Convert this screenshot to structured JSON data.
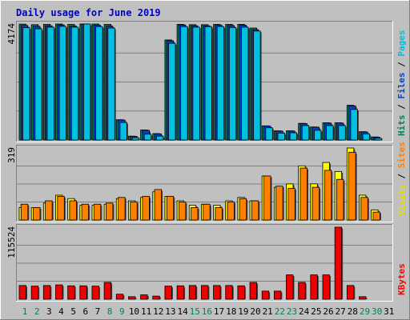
{
  "chart_data": {
    "type": "bar",
    "title": "Daily usage for June 2019",
    "days": [
      "1",
      "2",
      "3",
      "4",
      "5",
      "6",
      "7",
      "8",
      "9",
      "10",
      "11",
      "12",
      "13",
      "14",
      "15",
      "16",
      "17",
      "18",
      "19",
      "20",
      "21",
      "22",
      "23",
      "24",
      "25",
      "26",
      "27",
      "28",
      "29",
      "30",
      "31"
    ],
    "weekend_days": [
      "1",
      "2",
      "8",
      "9",
      "15",
      "16",
      "22",
      "23",
      "29",
      "30"
    ],
    "panels": [
      {
        "id": "hits",
        "max_label": "4174",
        "ymax": 4174,
        "vlabel": [
          {
            "text": "Hits",
            "color": "#00805c"
          },
          {
            "text": " / ",
            "color": "#000000"
          },
          {
            "text": "Files",
            "color": "#0044cc"
          },
          {
            "text": " / ",
            "color": "#000000"
          },
          {
            "text": "Pages",
            "color": "#00c0e0"
          }
        ],
        "series": [
          {
            "name": "Hits",
            "color": "#00805c",
            "values": [
              4170,
              4150,
              4160,
              4174,
              4160,
              4174,
              4174,
              4160,
              730,
              140,
              360,
              230,
              3600,
              4160,
              4150,
              4150,
              4160,
              4160,
              4160,
              4030,
              510,
              330,
              330,
              600,
              470,
              620,
              620,
              1250,
              300,
              110,
              0
            ]
          },
          {
            "name": "Files",
            "color": "#0044cc",
            "values": [
              4120,
              4090,
              4110,
              4140,
              4100,
              4174,
              4130,
              4100,
              720,
              130,
              350,
              220,
              3570,
              4140,
              4110,
              4110,
              4130,
              4120,
              4130,
              3970,
              500,
              320,
              320,
              590,
              460,
              610,
              610,
              1230,
              290,
              100,
              0
            ]
          },
          {
            "name": "Pages",
            "color": "#00c0e0",
            "values": [
              4040,
              4000,
              4060,
              4090,
              4060,
              4174,
              4080,
              4030,
              630,
              80,
              210,
              140,
              3480,
              4080,
              4060,
              4080,
              4080,
              4050,
              4060,
              3920,
              440,
              250,
              260,
              520,
              350,
              520,
              520,
              1100,
              220,
              60,
              0
            ]
          }
        ]
      },
      {
        "id": "visits",
        "max_label": "319",
        "ymax": 319,
        "vlabel": [
          {
            "text": "Visits",
            "color": "#e0e000"
          },
          {
            "text": " / ",
            "color": "#000000"
          },
          {
            "text": "Sites",
            "color": "#ff8000"
          }
        ],
        "series": [
          {
            "name": "Visits",
            "color": "#ffff00",
            "values": [
              55,
              55,
              75,
              110,
              95,
              65,
              65,
              70,
              95,
              85,
              100,
              125,
              105,
              85,
              65,
              70,
              65,
              85,
              100,
              85,
              195,
              145,
              160,
              240,
              160,
              255,
              215,
              319,
              110,
              45,
              0
            ]
          },
          {
            "name": "Sites",
            "color": "#ff8000",
            "values": [
              70,
              55,
              85,
              105,
              85,
              70,
              70,
              75,
              100,
              80,
              105,
              135,
              105,
              80,
              55,
              70,
              55,
              80,
              95,
              85,
              195,
              150,
              140,
              230,
              145,
              220,
              180,
              300,
              100,
              35,
              0
            ]
          }
        ]
      },
      {
        "id": "kbytes",
        "max_label": "115524",
        "ymax": 115524,
        "vlabel": [
          {
            "text": "KBytes",
            "color": "#ff0000"
          }
        ],
        "series": [
          {
            "name": "KBytes",
            "color": "#ee0000",
            "values": [
              22000,
              21000,
              22000,
              23000,
              21500,
              21500,
              21000,
              27000,
              8000,
              4000,
              7000,
              5000,
              21000,
              21500,
              22000,
              22000,
              22000,
              22000,
              21500,
              27000,
              13000,
              13000,
              39000,
              27000,
              39000,
              39000,
              115524,
              22000,
              4000,
              0,
              0
            ]
          }
        ]
      }
    ]
  }
}
